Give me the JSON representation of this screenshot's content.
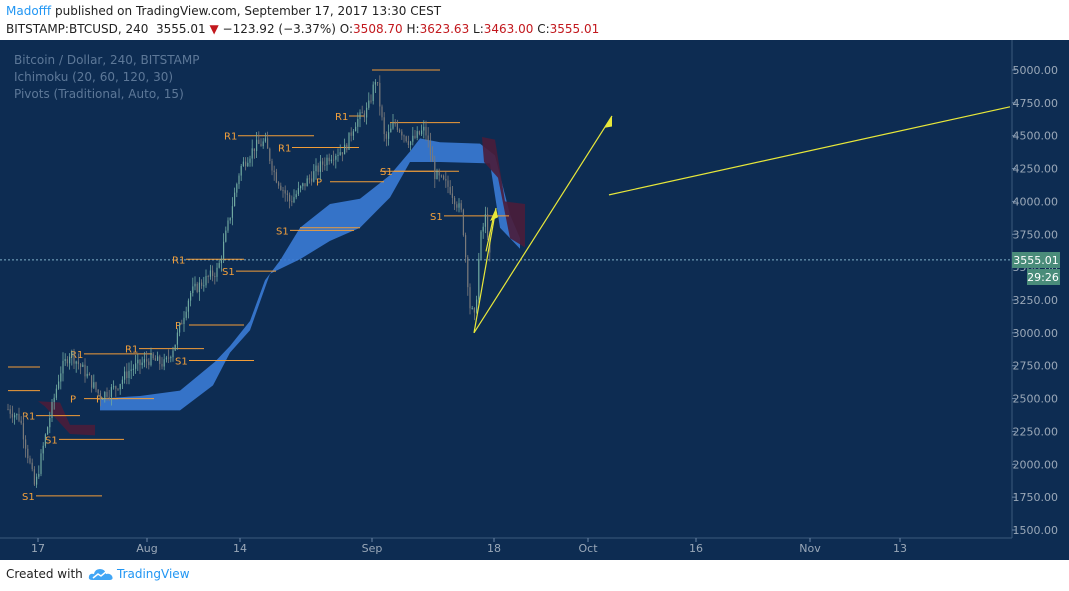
{
  "header": {
    "author": "Madofff",
    "published_text": "published on TradingView.com, September 17, 2017 13:30 CEST",
    "symbol": "BITSTAMP:BTCUSD, 240",
    "last": "3555.01",
    "change_arrow": "▼",
    "change": "−123.92 (−3.37%)",
    "o_label": "O:",
    "o_value": "3508.70",
    "h_label": "H:",
    "h_value": "3623.63",
    "l_label": "L:",
    "l_value": "3463.00",
    "c_label": "C:",
    "c_value": "3555.01"
  },
  "legend": {
    "title": "Bitcoin / Dollar, 240, BITSTAMP",
    "ichimoku": "Ichimoku (20, 60, 120, 30)",
    "pivots": "Pivots (Traditional, Auto, 15)"
  },
  "price_badge": "3555.01",
  "time_badge": "29:26",
  "footer": {
    "created_with": "Created with",
    "brand": "TradingView"
  },
  "colors": {
    "background": "#0d2c52",
    "cloud_bull": "#3a7bd5",
    "cloud_bear": "#4a1d3a",
    "candle_up": "#26a69a",
    "pivot_line": "#f29d38",
    "pivot_label": "#f2a03c",
    "projection": "#e8e83a",
    "axis_text": "#9aa8b8",
    "badge": "#4a8c7a"
  },
  "chart_data": {
    "type": "candlestick",
    "yaxis": {
      "ticks": [
        "5000.00",
        "4750.00",
        "4500.00",
        "4250.00",
        "4000.00",
        "3750.00",
        "3500.00",
        "3250.00",
        "3000.00",
        "2750.00",
        "2500.00",
        "2250.00",
        "2000.00",
        "1750.00",
        "1500.00"
      ],
      "range": [
        1500,
        5000
      ]
    },
    "xaxis": {
      "ticks": [
        "17",
        "Aug",
        "14",
        "Sep",
        "18",
        "Oct",
        "16",
        "Nov",
        "13"
      ]
    },
    "last_price": 3555.01,
    "pivot_labels": [
      "R1",
      "S1",
      "R1",
      "P",
      "R1",
      "S1",
      "P",
      "S1",
      "R1",
      "P",
      "S1",
      "R1",
      "R1",
      "S1",
      "P",
      "R1",
      "S1",
      "S1"
    ],
    "projection_lines": [
      {
        "from": [
          "Sep 15",
          3000
        ],
        "to": [
          "Sep 17",
          3950
        ]
      },
      {
        "from": [
          "Sep 15",
          3000
        ],
        "to": [
          "Oct 1",
          4650
        ]
      },
      {
        "from": [
          "Oct 2",
          4050
        ],
        "to": [
          "Nov 30",
          4720
        ]
      }
    ]
  }
}
